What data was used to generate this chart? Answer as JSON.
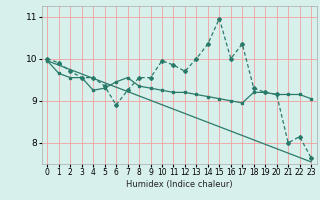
{
  "title": "",
  "xlabel": "Humidex (Indice chaleur)",
  "ylabel": "",
  "bg_color": "#d8f0ec",
  "grid_color": "#f0a0a0",
  "line_color": "#2a7a6a",
  "xlim": [
    -0.5,
    23.5
  ],
  "ylim": [
    7.5,
    11.25
  ],
  "yticks": [
    8,
    9,
    10,
    11
  ],
  "xticks": [
    0,
    1,
    2,
    3,
    4,
    5,
    6,
    7,
    8,
    9,
    10,
    11,
    12,
    13,
    14,
    15,
    16,
    17,
    18,
    19,
    20,
    21,
    22,
    23
  ],
  "line1_x": [
    0,
    1,
    2,
    3,
    4,
    5,
    6,
    7,
    8,
    9,
    10,
    11,
    12,
    13,
    14,
    15,
    16,
    17,
    18,
    19,
    20,
    21,
    22,
    23
  ],
  "line1_y": [
    10.0,
    9.9,
    9.7,
    9.55,
    9.55,
    9.35,
    8.9,
    9.25,
    9.55,
    9.55,
    9.95,
    9.85,
    9.7,
    10.0,
    10.35,
    10.95,
    10.0,
    10.35,
    9.3,
    9.2,
    9.15,
    8.0,
    8.15,
    7.65
  ],
  "line2_x": [
    0,
    1,
    2,
    3,
    4,
    5,
    6,
    7,
    8,
    9,
    10,
    11,
    12,
    13,
    14,
    15,
    16,
    17,
    18,
    19,
    20,
    21,
    22,
    23
  ],
  "line2_y": [
    9.95,
    9.65,
    9.55,
    9.55,
    9.25,
    9.3,
    9.45,
    9.55,
    9.35,
    9.3,
    9.25,
    9.2,
    9.2,
    9.15,
    9.1,
    9.05,
    9.0,
    8.95,
    9.2,
    9.2,
    9.15,
    9.15,
    9.15,
    9.05
  ],
  "line3_x": [
    0,
    23
  ],
  "line3_y": [
    9.95,
    7.55
  ],
  "xlabel_fontsize": 6,
  "tick_fontsize": 5.5,
  "ytick_fontsize": 6.5
}
